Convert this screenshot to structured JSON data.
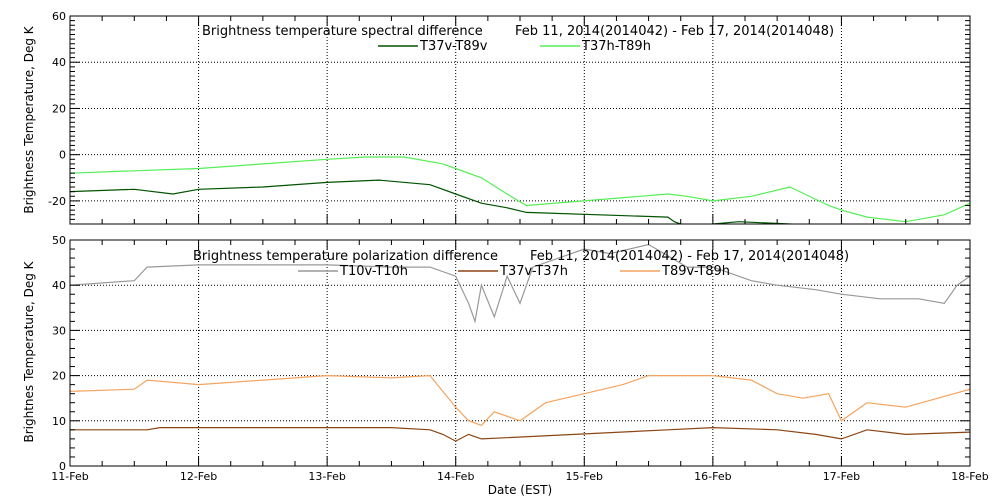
{
  "chart_data": [
    {
      "type": "line",
      "title": "Brightness temperature spectral difference",
      "subtitle": "Feb 11, 2014(2014042) - Feb 17, 2014(2014048)",
      "ylabel": "Brightness Temperature, Deg K",
      "xlabel": "",
      "xlim": [
        0,
        7
      ],
      "ylim": [
        -30,
        60
      ],
      "yticks": [
        -20,
        0,
        20,
        40,
        60
      ],
      "grid": true,
      "legend_position": "top-center",
      "series": [
        {
          "name": "T37v-T89v",
          "color": "#005400",
          "points": [
            [
              0,
              -16
            ],
            [
              0.5,
              -15
            ],
            [
              0.8,
              -17
            ],
            [
              1.0,
              -15
            ],
            [
              1.5,
              -14
            ],
            [
              2.0,
              -12
            ],
            [
              2.4,
              -11
            ],
            [
              2.8,
              -13
            ],
            [
              3.0,
              -17
            ],
            [
              3.2,
              -21
            ],
            [
              3.4,
              -23
            ],
            [
              3.55,
              -25
            ],
            [
              4.65,
              -27
            ],
            [
              4.7,
              -29
            ],
            [
              4.8,
              -31
            ],
            [
              5.2,
              -29
            ],
            [
              5.6,
              -30
            ],
            [
              5.9,
              -31
            ],
            [
              6.0,
              -30
            ],
            [
              6.5,
              -31
            ],
            [
              7.0,
              -30
            ]
          ]
        },
        {
          "name": "T37h-T89h",
          "color": "#55ee55",
          "points": [
            [
              0,
              -8
            ],
            [
              0.5,
              -7
            ],
            [
              1.0,
              -6
            ],
            [
              1.5,
              -4
            ],
            [
              2.0,
              -2
            ],
            [
              2.3,
              -1
            ],
            [
              2.6,
              -1
            ],
            [
              2.9,
              -4
            ],
            [
              3.0,
              -6
            ],
            [
              3.2,
              -10
            ],
            [
              3.4,
              -17
            ],
            [
              3.55,
              -22
            ],
            [
              4.65,
              -17
            ],
            [
              4.8,
              -18
            ],
            [
              5.0,
              -20
            ],
            [
              5.3,
              -18
            ],
            [
              5.6,
              -14
            ],
            [
              5.9,
              -22
            ],
            [
              6.0,
              -24
            ],
            [
              6.2,
              -27
            ],
            [
              6.5,
              -29
            ],
            [
              6.8,
              -26
            ],
            [
              7.0,
              -21
            ]
          ]
        }
      ]
    },
    {
      "type": "line",
      "title": "Brightness temperature polarization difference",
      "subtitle": "Feb 11, 2014(2014042) - Feb 17, 2014(2014048)",
      "ylabel": "Brightnes Temperature, Deg K",
      "xlabel": "Date (EST)",
      "xlim": [
        0,
        7
      ],
      "ylim": [
        0,
        50
      ],
      "yticks": [
        0,
        10,
        20,
        30,
        40,
        50
      ],
      "categories": [
        "11-Feb",
        "12-Feb",
        "13-Feb",
        "14-Feb",
        "15-Feb",
        "16-Feb",
        "17-Feb",
        "18-Feb"
      ],
      "grid": true,
      "legend_position": "top-center",
      "series": [
        {
          "name": "T10v-T10h",
          "color": "#999999",
          "points": [
            [
              0,
              40
            ],
            [
              0.5,
              41
            ],
            [
              0.6,
              44
            ],
            [
              1.0,
              44.5
            ],
            [
              1.5,
              44.5
            ],
            [
              2.0,
              44.5
            ],
            [
              2.5,
              44
            ],
            [
              2.8,
              44
            ],
            [
              3.0,
              42
            ],
            [
              3.1,
              36
            ],
            [
              3.15,
              32
            ],
            [
              3.2,
              40
            ],
            [
              3.3,
              33
            ],
            [
              3.4,
              42
            ],
            [
              3.5,
              36
            ],
            [
              3.6,
              44
            ],
            [
              3.8,
              46
            ],
            [
              4.0,
              48
            ],
            [
              4.2,
              47
            ],
            [
              4.5,
              49
            ],
            [
              4.8,
              44
            ],
            [
              5.0,
              44
            ],
            [
              5.3,
              41
            ],
            [
              5.5,
              40
            ],
            [
              5.8,
              39
            ],
            [
              6.0,
              38
            ],
            [
              6.3,
              37
            ],
            [
              6.6,
              37
            ],
            [
              6.8,
              36
            ],
            [
              6.9,
              40
            ],
            [
              7.0,
              42
            ]
          ]
        },
        {
          "name": "T37v-T37h",
          "color": "#8b4513",
          "points": [
            [
              0,
              8
            ],
            [
              0.6,
              8
            ],
            [
              0.7,
              8.5
            ],
            [
              1.5,
              8.5
            ],
            [
              2.5,
              8.5
            ],
            [
              2.8,
              8
            ],
            [
              2.9,
              7
            ],
            [
              3.0,
              5.5
            ],
            [
              3.1,
              7
            ],
            [
              3.2,
              6
            ],
            [
              4.65,
              8
            ],
            [
              5.0,
              8.5
            ],
            [
              5.5,
              8
            ],
            [
              5.8,
              7
            ],
            [
              6.0,
              6
            ],
            [
              6.2,
              8
            ],
            [
              6.5,
              7
            ],
            [
              7.0,
              7.5
            ]
          ]
        },
        {
          "name": "T89v-T89h",
          "color": "#f4a460",
          "points": [
            [
              0,
              16.5
            ],
            [
              0.5,
              17
            ],
            [
              0.6,
              19
            ],
            [
              1.0,
              18
            ],
            [
              1.5,
              19
            ],
            [
              2.0,
              20
            ],
            [
              2.5,
              19.5
            ],
            [
              2.8,
              20
            ],
            [
              3.0,
              13
            ],
            [
              3.1,
              10
            ],
            [
              3.2,
              9
            ],
            [
              3.3,
              12
            ],
            [
              3.5,
              10
            ],
            [
              3.7,
              14
            ],
            [
              4.0,
              16
            ],
            [
              4.3,
              18
            ],
            [
              4.5,
              20
            ],
            [
              4.8,
              20
            ],
            [
              5.0,
              20
            ],
            [
              5.3,
              19
            ],
            [
              5.5,
              16
            ],
            [
              5.7,
              15
            ],
            [
              5.9,
              16
            ],
            [
              6.0,
              10
            ],
            [
              6.2,
              14
            ],
            [
              6.5,
              13
            ],
            [
              7.0,
              17
            ]
          ]
        }
      ]
    }
  ]
}
